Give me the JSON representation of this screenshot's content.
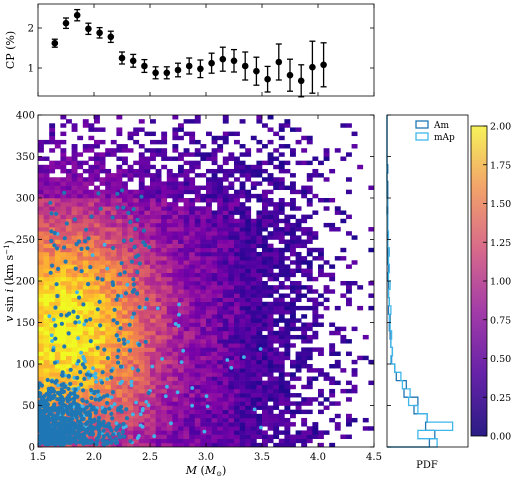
{
  "chart_data": [
    {
      "id": "cp-fraction",
      "type": "scatter",
      "ylabel": "CP (%)",
      "xlim": [
        1.5,
        4.5
      ],
      "ylim": [
        0.3,
        2.6
      ],
      "yticks": [
        1,
        2
      ],
      "error_bars": true,
      "x": [
        1.65,
        1.75,
        1.85,
        1.95,
        2.05,
        2.15,
        2.25,
        2.35,
        2.45,
        2.55,
        2.65,
        2.75,
        2.85,
        2.95,
        3.05,
        3.15,
        3.25,
        3.35,
        3.45,
        3.55,
        3.65,
        3.75,
        3.85,
        3.95,
        4.05
      ],
      "y": [
        1.62,
        2.12,
        2.32,
        1.98,
        1.88,
        1.78,
        1.25,
        1.18,
        1.05,
        0.88,
        0.88,
        0.95,
        1.05,
        0.98,
        1.12,
        1.22,
        1.18,
        1.05,
        0.92,
        0.72,
        1.15,
        0.82,
        0.68,
        1.02,
        1.08
      ],
      "yerr": [
        0.1,
        0.13,
        0.14,
        0.14,
        0.13,
        0.14,
        0.15,
        0.16,
        0.16,
        0.15,
        0.15,
        0.17,
        0.2,
        0.22,
        0.25,
        0.3,
        0.28,
        0.35,
        0.35,
        0.32,
        0.45,
        0.4,
        0.4,
        0.65,
        0.55
      ],
      "color": "#000000"
    },
    {
      "id": "vsini-vs-mass",
      "type": "heatmap",
      "xlabel": "M (M⊙)",
      "ylabel": "v sin i (km s⁻¹)",
      "xlim": [
        1.5,
        4.5
      ],
      "ylim": [
        0,
        400
      ],
      "xticks": [
        1.5,
        2.0,
        2.5,
        3.0,
        3.5,
        4.0,
        4.5
      ],
      "yticks": [
        0,
        50,
        100,
        150,
        200,
        250,
        300,
        350,
        400
      ],
      "density_peak": {
        "mass": 1.72,
        "vsini": 140
      },
      "colormap": "plasma",
      "overlay_series": [
        {
          "name": "Am",
          "color": "#1f77b4",
          "mass_range": [
            1.5,
            2.6
          ],
          "vsini_range": [
            0,
            350
          ],
          "concentration_vsini_below": 90
        },
        {
          "name": "mAp",
          "color": "#3fb6ea",
          "mass_range": [
            1.6,
            3.6
          ],
          "vsini_range": [
            0,
            290
          ]
        }
      ]
    },
    {
      "id": "vsini-pdf",
      "type": "histogram",
      "xlabel": "PDF",
      "orientation": "horizontal",
      "bin_width": 10,
      "series": [
        {
          "name": "Am",
          "color": "#1f77b4",
          "bins_from_zero": [
            0.55,
            0.62,
            0.5,
            0.52,
            0.35,
            0.4,
            0.22,
            0.25,
            0.12,
            0.1,
            0.06,
            0.07,
            0.05,
            0.04,
            0.03,
            0.04,
            0.02,
            0.03,
            0.02,
            0.02,
            0.01,
            0.02,
            0.01,
            0.01,
            0.01,
            0.01,
            0.01,
            0.01,
            0.01,
            0.01,
            0.01,
            0.01,
            0.0,
            0.01,
            0.0,
            0.0,
            0.0,
            0.0,
            0.0,
            0.0
          ]
        },
        {
          "name": "mAp",
          "color": "#3fb6ea",
          "bins_from_zero": [
            0.65,
            0.4,
            0.85,
            0.52,
            0.4,
            0.28,
            0.3,
            0.2,
            0.18,
            0.1,
            0.05,
            0.07,
            0.05,
            0.06,
            0.04,
            0.03,
            0.05,
            0.03,
            0.02,
            0.04,
            0.02,
            0.03,
            0.02,
            0.03,
            0.01,
            0.02,
            0.01,
            0.01,
            0.0,
            0.01,
            0.0,
            0.0,
            0.0,
            0.0,
            0.0,
            0.0,
            0.0,
            0.0,
            0.0,
            0.0
          ]
        }
      ],
      "legend_position": "top-right"
    },
    {
      "id": "colorbar",
      "type": "colorbar",
      "colormap": "plasma",
      "range": [
        0.0,
        2.0
      ],
      "ticks": [
        0.0,
        0.25,
        0.5,
        0.75,
        1.0,
        1.25,
        1.5,
        1.75,
        2.0
      ],
      "tick_labels": [
        "0.00",
        "0.25",
        "0.50",
        "0.75",
        "1.00",
        "1.25",
        "1.50",
        "1.75",
        "2.00"
      ]
    }
  ],
  "labels": {
    "top_ylabel": "CP (%)",
    "main_ylabel_v": "v",
    "main_ylabel_sin": " sin ",
    "main_ylabel_i": "i",
    "main_ylabel_units": " (km s",
    "main_ylabel_sup": "−1",
    "main_ylabel_close": ")",
    "main_xlabel_M": "M",
    "main_xlabel_open": " (",
    "main_xlabel_Msun": "M",
    "main_xlabel_sun": "⊙",
    "main_xlabel_close": ")",
    "pdf_xlabel": "PDF",
    "legend_am": "Am",
    "legend_map": "mAp"
  },
  "colors": {
    "am": "#1f77b4",
    "map": "#3fb6ea",
    "axes": "#000000"
  }
}
